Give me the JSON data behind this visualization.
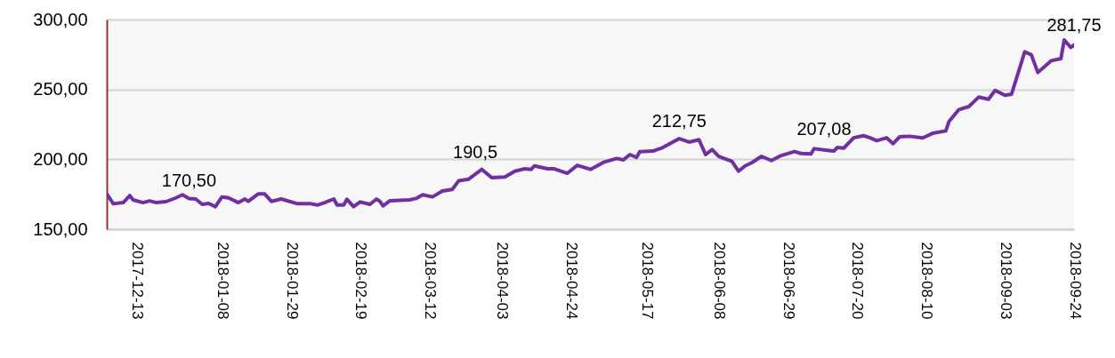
{
  "chart_data": {
    "type": "line",
    "x": [
      "2017-12-04",
      "2017-12-06",
      "2017-12-09",
      "2017-12-11",
      "2017-12-12",
      "2017-12-15",
      "2017-12-17",
      "2017-12-19",
      "2017-12-22",
      "2017-12-25",
      "2017-12-27",
      "2017-12-29",
      "2017-12-31",
      "2018-01-02",
      "2018-01-04",
      "2018-01-06",
      "2018-01-08",
      "2018-01-10",
      "2018-01-13",
      "2018-01-15",
      "2018-01-16",
      "2018-01-19",
      "2018-01-21",
      "2018-01-23",
      "2018-01-26",
      "2018-01-31",
      "2018-02-04",
      "2018-02-06",
      "2018-02-08",
      "2018-02-11",
      "2018-02-12",
      "2018-02-14",
      "2018-02-15",
      "2018-02-17",
      "2018-02-19",
      "2018-02-22",
      "2018-02-24",
      "2018-02-25",
      "2018-02-26",
      "2018-02-28",
      "2018-03-06",
      "2018-03-08",
      "2018-03-10",
      "2018-03-13",
      "2018-03-16",
      "2018-03-19",
      "2018-03-21",
      "2018-03-24",
      "2018-03-28",
      "2018-03-31",
      "2018-04-04",
      "2018-04-07",
      "2018-04-10",
      "2018-04-12",
      "2018-04-13",
      "2018-04-17",
      "2018-04-19",
      "2018-04-23",
      "2018-04-26",
      "2018-04-30",
      "2018-05-04",
      "2018-05-08",
      "2018-05-10",
      "2018-05-12",
      "2018-05-14",
      "2018-05-15",
      "2018-05-19",
      "2018-05-22",
      "2018-05-27",
      "2018-05-30",
      "2018-06-02",
      "2018-06-04",
      "2018-06-06",
      "2018-06-08",
      "2018-06-12",
      "2018-06-14",
      "2018-06-16",
      "2018-06-18",
      "2018-06-21",
      "2018-06-24",
      "2018-06-27",
      "2018-07-01",
      "2018-07-03",
      "2018-07-06",
      "2018-07-07",
      "2018-07-11",
      "2018-07-13",
      "2018-07-14",
      "2018-07-16",
      "2018-07-19",
      "2018-07-22",
      "2018-07-24",
      "2018-07-26",
      "2018-07-29",
      "2018-07-31",
      "2018-08-02",
      "2018-08-05",
      "2018-08-09",
      "2018-08-12",
      "2018-08-16",
      "2018-08-17",
      "2018-08-20",
      "2018-08-23",
      "2018-08-26",
      "2018-08-29",
      "2018-08-31",
      "2018-09-03",
      "2018-09-05",
      "2018-09-09",
      "2018-09-11",
      "2018-09-13",
      "2018-09-17",
      "2018-09-20",
      "2018-09-21",
      "2018-09-23",
      "2018-09-24"
    ],
    "series": [
      {
        "color": "#7030a0",
        "values": [
          175.2,
          168.2,
          169.0,
          174.0,
          171.0,
          169.0,
          170.3,
          169.0,
          169.7,
          172.4,
          174.6,
          172.0,
          171.6,
          167.8,
          168.4,
          166.1,
          173.1,
          172.4,
          169.0,
          171.6,
          169.9,
          175.2,
          175.2,
          169.9,
          171.6,
          168.2,
          168.2,
          167.3,
          168.8,
          171.6,
          167.3,
          167.3,
          171.4,
          166.1,
          169.5,
          167.8,
          171.6,
          169.9,
          166.7,
          170.3,
          171.0,
          172.0,
          174.6,
          173.1,
          177.3,
          178.4,
          184.7,
          185.8,
          192.8,
          186.8,
          187.3,
          191.5,
          193.2,
          192.8,
          195.3,
          193.2,
          193.2,
          190.0,
          195.7,
          192.8,
          197.9,
          200.6,
          199.6,
          203.4,
          201.3,
          205.5,
          205.9,
          208.4,
          214.8,
          212.3,
          214.0,
          203.4,
          207.0,
          202.1,
          198.5,
          191.5,
          195.3,
          197.5,
          202.1,
          199.1,
          202.7,
          205.5,
          204.2,
          203.8,
          207.6,
          206.4,
          205.9,
          208.4,
          208.0,
          215.4,
          216.9,
          215.4,
          213.3,
          215.4,
          211.2,
          216.1,
          216.5,
          215.3,
          218.6,
          220.3,
          227.1,
          235.6,
          237.7,
          244.5,
          243.0,
          249.3,
          245.8,
          246.6,
          276.9,
          274.8,
          262.1,
          270.5,
          272.0,
          285.4,
          280.1,
          281.75
        ]
      }
    ],
    "xlim": [
      "2017-12-04",
      "2018-09-24"
    ],
    "xticks": [
      "2017-12-13",
      "2018-01-08",
      "2018-01-29",
      "2018-02-19",
      "2018-03-12",
      "2018-04-03",
      "2018-04-24",
      "2018-05-17",
      "2018-06-08",
      "2018-06-29",
      "2018-07-20",
      "2018-08-10",
      "2018-09-03",
      "2018-09-24"
    ],
    "ylim": [
      150,
      300
    ],
    "yticks": [
      {
        "value": 150,
        "label": "150,00"
      },
      {
        "value": 200,
        "label": "200,00"
      },
      {
        "value": 250,
        "label": "250,00"
      },
      {
        "value": 300,
        "label": "300,00"
      }
    ],
    "grid": "y",
    "annotations": [
      {
        "text": "170,50",
        "x": "2017-12-29",
        "y": 170.5
      },
      {
        "text": "190,5",
        "x": "2018-03-26",
        "y": 190.5
      },
      {
        "text": "212,75",
        "x": "2018-05-27",
        "y": 212.75
      },
      {
        "text": "207,08",
        "x": "2018-07-10",
        "y": 207.08
      },
      {
        "text": "281,75",
        "x": "2018-09-24",
        "y": 281.75
      }
    ]
  }
}
